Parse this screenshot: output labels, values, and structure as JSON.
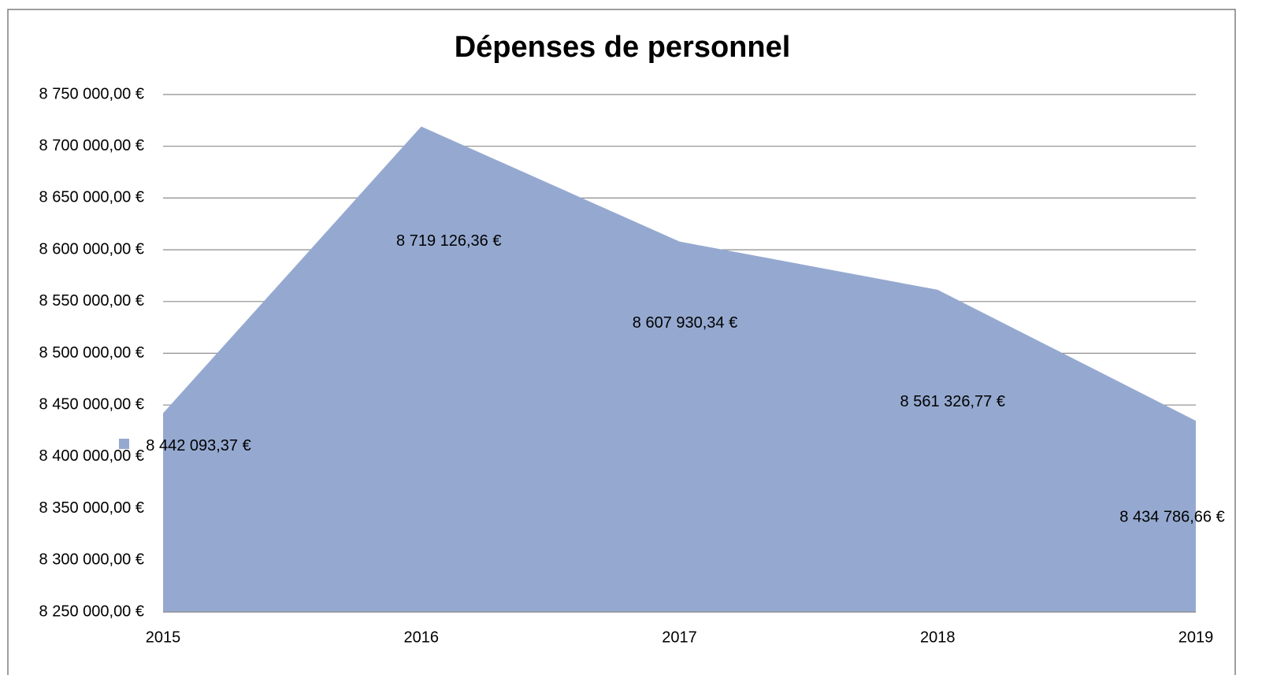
{
  "chart_data": {
    "type": "area",
    "title": "Dépenses de personnel",
    "categories": [
      "2015",
      "2016",
      "2017",
      "2018",
      "2019"
    ],
    "values": [
      8442093.37,
      8719126.36,
      8607930.34,
      8561326.77,
      8434786.66
    ],
    "value_labels": [
      "8 442 093,37 €",
      "8 719 126,36 €",
      "8 607 930,34 €",
      "8 561 326,77 €",
      "8 434 786,66 €"
    ],
    "color": "#95a9d0",
    "ylim": [
      8250000,
      8750000
    ],
    "yticks": [
      {
        "value": 8250000,
        "label": "8 250 000,00 €"
      },
      {
        "value": 8300000,
        "label": "8 300 000,00 €"
      },
      {
        "value": 8350000,
        "label": "8 350 000,00 €"
      },
      {
        "value": 8400000,
        "label": "8 400 000,00 €"
      },
      {
        "value": 8450000,
        "label": "8 450 000,00 €"
      },
      {
        "value": 8500000,
        "label": "8 500 000,00 €"
      },
      {
        "value": 8550000,
        "label": "8 550 000,00 €"
      },
      {
        "value": 8600000,
        "label": "8 600 000,00 €"
      },
      {
        "value": 8650000,
        "label": "8 650 000,00 €"
      },
      {
        "value": 8700000,
        "label": "8 700 000,00 €"
      },
      {
        "value": 8750000,
        "label": "8 750 000,00 €"
      }
    ],
    "grid": true
  }
}
